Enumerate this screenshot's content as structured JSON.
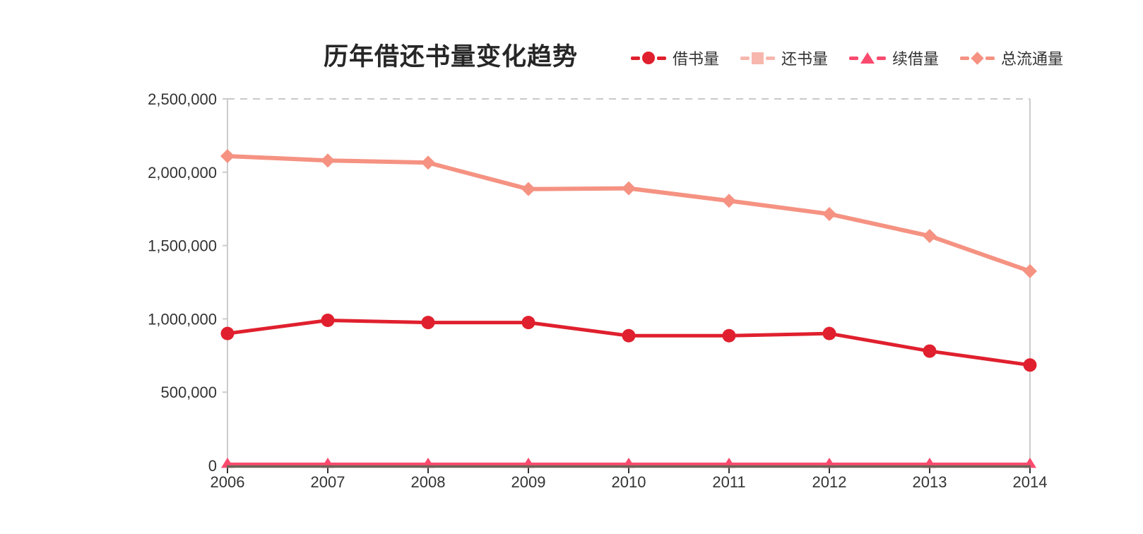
{
  "chart": {
    "title": "历年借还书量变化趋势"
  },
  "chart_data": {
    "type": "line",
    "title": "历年借还书量变化趋势",
    "categories": [
      "2006",
      "2007",
      "2008",
      "2009",
      "2010",
      "2011",
      "2012",
      "2013",
      "2014"
    ],
    "series": [
      {
        "key": "borrow",
        "name": "借书量",
        "marker": "circle",
        "color": "#e0202e",
        "values": [
          900000,
          990000,
          975000,
          975000,
          885000,
          885000,
          900000,
          780000,
          685000
        ]
      },
      {
        "key": "return",
        "name": "还书量",
        "marker": "square",
        "color": "#f7b7ad",
        "values": [
          5000,
          5000,
          5000,
          5000,
          5000,
          5000,
          5000,
          5000,
          5000
        ]
      },
      {
        "key": "renew",
        "name": "续借量",
        "marker": "triangle",
        "color": "#fa4a6e",
        "values": [
          10000,
          10000,
          10000,
          10000,
          10000,
          10000,
          10000,
          10000,
          10000
        ]
      },
      {
        "key": "total",
        "name": "总流通量",
        "marker": "diamond",
        "color": "#f59282",
        "values": [
          2110000,
          2080000,
          2065000,
          1885000,
          1890000,
          1805000,
          1715000,
          1565000,
          1325000
        ]
      }
    ],
    "ylim": [
      0,
      2500000
    ],
    "y_ticks": [
      0,
      500000,
      1000000,
      1500000,
      2000000,
      2500000
    ],
    "y_tick_labels": [
      "0",
      "500,000",
      "1,000,000",
      "1,500,000",
      "2,000,000",
      "2,500,000"
    ],
    "legend_position": "top-right",
    "grid": {
      "top_boundary_dashed": true,
      "vertical_gridlines": false
    },
    "colors": {
      "grid_dashed": "#c9c9c9",
      "plot_border": "#cccccc",
      "axis_baseline": "#6b6457",
      "tick": "#333333",
      "axis_label": "#333333",
      "title_text": "#262626"
    }
  }
}
